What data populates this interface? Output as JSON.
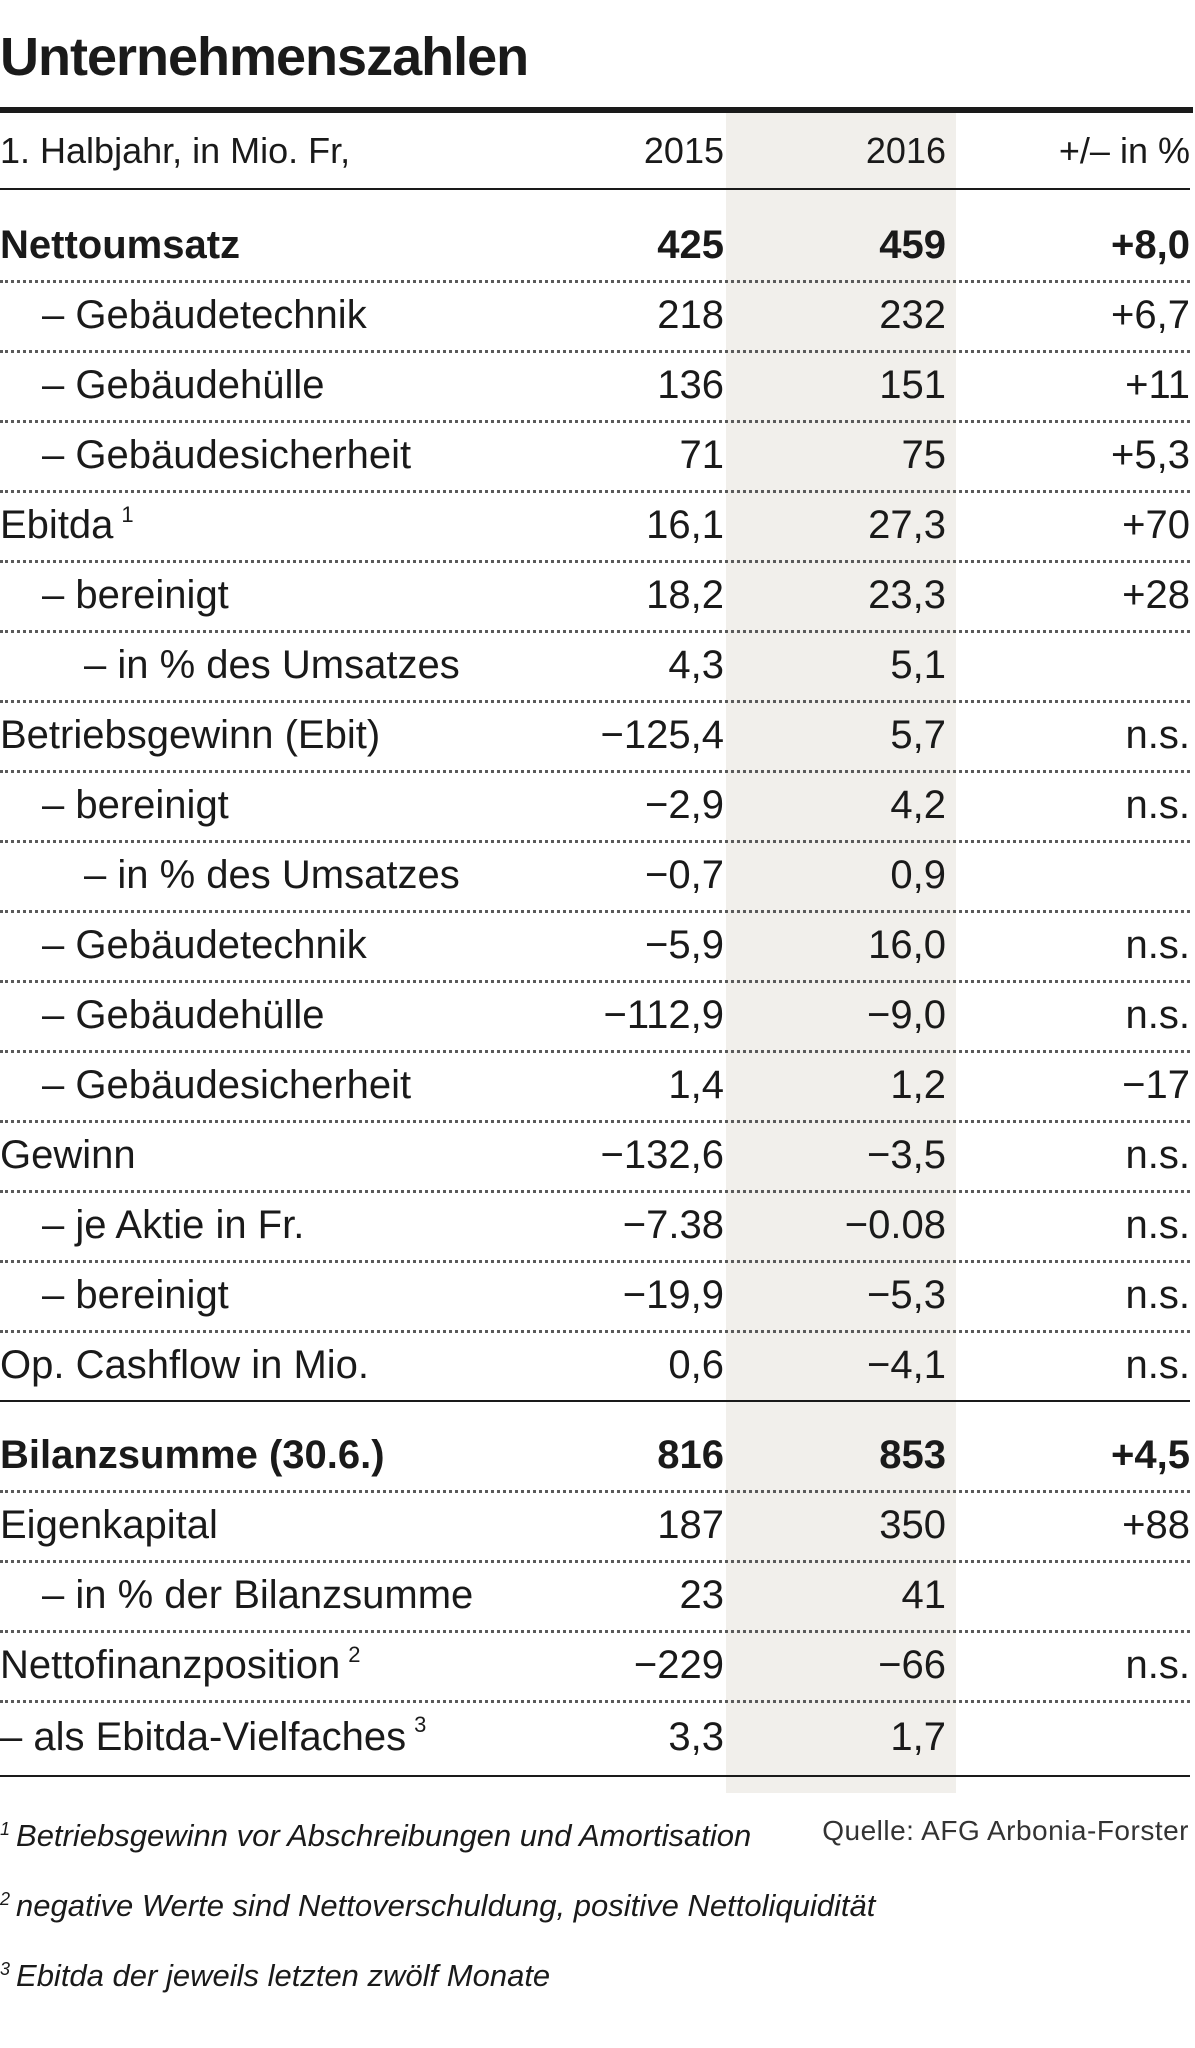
{
  "title": "Unternehmenszahlen",
  "header": {
    "label": "1. Halbjahr, in Mio. Fr,",
    "col_2015": "2015",
    "col_2016": "2016",
    "col_change": "+/– in %"
  },
  "chart_data": {
    "type": "table",
    "title": "Unternehmenszahlen",
    "columns": [
      "1. Halbjahr, in Mio. Fr,",
      "2015",
      "2016",
      "+/– in %"
    ],
    "rows": [
      {
        "label": "Nettoumsatz",
        "fn": "",
        "v2015": "425",
        "v2016": "459",
        "change": "+8,0"
      },
      {
        "label": "– Gebäudetechnik",
        "fn": "",
        "v2015": "218",
        "v2016": "232",
        "change": "+6,7"
      },
      {
        "label": "– Gebäudehülle",
        "fn": "",
        "v2015": "136",
        "v2016": "151",
        "change": "+11"
      },
      {
        "label": "– Gebäudesicherheit",
        "fn": "",
        "v2015": "71",
        "v2016": "75",
        "change": "+5,3"
      },
      {
        "label": "Ebitda",
        "fn": "1",
        "v2015": "16,1",
        "v2016": "27,3",
        "change": "+70"
      },
      {
        "label": "– bereinigt",
        "fn": "",
        "v2015": "18,2",
        "v2016": "23,3",
        "change": "+28"
      },
      {
        "label": "– in % des Umsatzes",
        "fn": "",
        "v2015": "4,3",
        "v2016": "5,1",
        "change": ""
      },
      {
        "label": "Betriebsgewinn (Ebit)",
        "fn": "",
        "v2015": "−125,4",
        "v2016": "5,7",
        "change": "n.s."
      },
      {
        "label": "– bereinigt",
        "fn": "",
        "v2015": "−2,9",
        "v2016": "4,2",
        "change": "n.s."
      },
      {
        "label": "– in % des Umsatzes",
        "fn": "",
        "v2015": "−0,7",
        "v2016": "0,9",
        "change": ""
      },
      {
        "label": "– Gebäudetechnik",
        "fn": "",
        "v2015": "−5,9",
        "v2016": "16,0",
        "change": "n.s."
      },
      {
        "label": "– Gebäudehülle",
        "fn": "",
        "v2015": "−112,9",
        "v2016": "−9,0",
        "change": "n.s."
      },
      {
        "label": "– Gebäudesicherheit",
        "fn": "",
        "v2015": "1,4",
        "v2016": "1,2",
        "change": "−17"
      },
      {
        "label": "Gewinn",
        "fn": "",
        "v2015": "−132,6",
        "v2016": "−3,5",
        "change": "n.s."
      },
      {
        "label": "– je Aktie in Fr.",
        "fn": "",
        "v2015": "−7.38",
        "v2016": "−0.08",
        "change": "n.s."
      },
      {
        "label": "– bereinigt",
        "fn": "",
        "v2015": "−19,9",
        "v2016": "−5,3",
        "change": "n.s."
      },
      {
        "label": "Op. Cashflow in Mio.",
        "fn": "",
        "v2015": "0,6",
        "v2016": "−4,1",
        "change": "n.s."
      },
      {
        "label": "Bilanzsumme (30.6.)",
        "fn": "",
        "v2015": "816",
        "v2016": "853",
        "change": "+4,5"
      },
      {
        "label": "Eigenkapital",
        "fn": "",
        "v2015": "187",
        "v2016": "350",
        "change": "+88"
      },
      {
        "label": "– in % der Bilanzsumme",
        "fn": "",
        "v2015": "23",
        "v2016": "41",
        "change": ""
      },
      {
        "label": "Nettofinanzposition",
        "fn": "2",
        "v2015": "−229",
        "v2016": "−66",
        "change": "n.s."
      },
      {
        "label": "– als Ebitda-Vielfaches",
        "fn": "3",
        "v2015": "3,3",
        "v2016": "1,7",
        "change": ""
      }
    ]
  },
  "footnotes": [
    {
      "num": "1",
      "text": "Betriebsgewinn vor Abschreibungen und Amortisation"
    },
    {
      "num": "2",
      "text": "negative Werte sind Nettoverschuldung, positive Nettoliquidität"
    },
    {
      "num": "3",
      "text": "Ebitda der jeweils letzten zwölf Monate"
    }
  ],
  "source": "Quelle: AFG Arbonia-Forster"
}
